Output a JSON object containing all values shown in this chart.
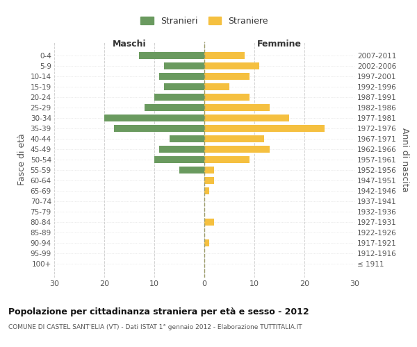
{
  "age_groups": [
    "100+",
    "95-99",
    "90-94",
    "85-89",
    "80-84",
    "75-79",
    "70-74",
    "65-69",
    "60-64",
    "55-59",
    "50-54",
    "45-49",
    "40-44",
    "35-39",
    "30-34",
    "25-29",
    "20-24",
    "15-19",
    "10-14",
    "5-9",
    "0-4"
  ],
  "birth_years": [
    "≤ 1911",
    "1912-1916",
    "1917-1921",
    "1922-1926",
    "1927-1931",
    "1932-1936",
    "1937-1941",
    "1942-1946",
    "1947-1951",
    "1952-1956",
    "1957-1961",
    "1962-1966",
    "1967-1971",
    "1972-1976",
    "1977-1981",
    "1982-1986",
    "1987-1991",
    "1992-1996",
    "1997-2001",
    "2002-2006",
    "2007-2011"
  ],
  "males": [
    0,
    0,
    0,
    0,
    0,
    0,
    0,
    0,
    0,
    5,
    10,
    9,
    7,
    18,
    20,
    12,
    10,
    8,
    9,
    8,
    13
  ],
  "females": [
    0,
    0,
    1,
    0,
    2,
    0,
    0,
    1,
    2,
    2,
    9,
    13,
    12,
    24,
    17,
    13,
    9,
    5,
    9,
    11,
    8
  ],
  "male_color": "#6a9a5f",
  "female_color": "#f5c040",
  "background_color": "#ffffff",
  "grid_color": "#cccccc",
  "xlim": 30,
  "title": "Popolazione per cittadinanza straniera per età e sesso - 2012",
  "subtitle": "COMUNE DI CASTEL SANT'ELIA (VT) - Dati ISTAT 1° gennaio 2012 - Elaborazione TUTTITALIA.IT",
  "ylabel_left": "Fasce di età",
  "ylabel_right": "Anni di nascita",
  "xlabel_male": "Maschi",
  "xlabel_female": "Femmine",
  "legend_male": "Stranieri",
  "legend_female": "Straniere"
}
